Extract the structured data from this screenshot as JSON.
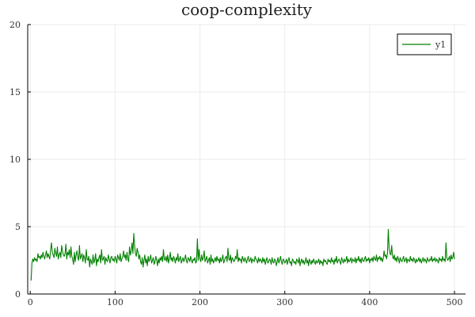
{
  "chart_data": {
    "type": "line",
    "title": "coop-complexity",
    "xlabel": "",
    "ylabel": "",
    "xlim": [
      -3,
      513
    ],
    "ylim": [
      0,
      20
    ],
    "x_ticks": [
      0,
      100,
      200,
      300,
      400,
      500
    ],
    "y_ticks": [
      0,
      5,
      10,
      15,
      20
    ],
    "grid": true,
    "legend": {
      "placement": "top-right",
      "entries": [
        "y1"
      ]
    },
    "series": [
      {
        "name": "y1",
        "color": "#008000",
        "x_start": 1,
        "x_step": 1,
        "values": [
          1.0,
          2.3,
          2.6,
          2.4,
          2.7,
          2.5,
          2.6,
          2.4,
          3.0,
          2.7,
          2.8,
          2.6,
          2.9,
          2.7,
          3.1,
          2.8,
          2.6,
          2.9,
          3.2,
          2.7,
          3.0,
          2.8,
          2.6,
          3.3,
          3.8,
          3.1,
          2.9,
          2.7,
          3.4,
          3.0,
          2.8,
          3.5,
          2.6,
          2.9,
          3.1,
          2.7,
          3.6,
          3.2,
          2.9,
          2.8,
          3.0,
          3.7,
          2.6,
          3.1,
          2.9,
          3.3,
          2.7,
          3.5,
          2.8,
          2.6,
          2.2,
          3.1,
          2.4,
          2.9,
          3.2,
          2.7,
          2.5,
          3.6,
          2.6,
          2.8,
          3.0,
          2.4,
          2.9,
          2.7,
          2.3,
          3.3,
          2.6,
          2.5,
          2.8,
          2.0,
          2.6,
          2.4,
          2.2,
          2.9,
          2.3,
          2.5,
          3.0,
          2.1,
          2.6,
          2.4,
          2.7,
          2.9,
          2.3,
          3.3,
          2.5,
          2.6,
          2.8,
          2.2,
          2.7,
          2.5,
          2.4,
          2.9,
          2.6,
          2.3,
          2.7,
          2.8,
          2.5,
          2.6,
          2.4,
          2.8,
          2.6,
          2.3,
          2.9,
          2.7,
          2.5,
          3.0,
          2.4,
          2.6,
          2.8,
          3.2,
          2.7,
          2.9,
          2.5,
          3.1,
          2.6,
          2.4,
          3.5,
          2.9,
          3.2,
          3.8,
          3.0,
          4.5,
          3.6,
          3.0,
          2.8,
          3.4,
          3.1,
          2.6,
          2.9,
          2.4,
          2.2,
          2.7,
          2.0,
          2.5,
          2.9,
          2.3,
          2.6,
          2.1,
          2.8,
          2.4,
          2.6,
          2.9,
          2.3,
          2.5,
          2.7,
          2.2,
          2.4,
          2.8,
          2.5,
          2.1,
          2.6,
          2.3,
          2.7,
          2.5,
          2.8,
          2.4,
          3.3,
          2.6,
          2.5,
          2.8,
          2.4,
          2.9,
          2.3,
          2.6,
          3.1,
          2.5,
          2.7,
          2.4,
          2.8,
          2.6,
          2.3,
          2.7,
          2.5,
          3.0,
          2.4,
          2.6,
          2.8,
          2.3,
          2.5,
          2.7,
          2.4,
          2.6,
          2.9,
          2.5,
          2.3,
          2.7,
          2.6,
          2.4,
          2.8,
          2.5,
          2.3,
          2.6,
          2.5,
          2.7,
          2.3,
          2.4,
          4.1,
          2.5,
          3.3,
          2.6,
          2.4,
          2.9,
          2.5,
          2.7,
          3.2,
          2.4,
          2.6,
          2.8,
          2.3,
          2.5,
          2.7,
          2.2,
          2.9,
          2.4,
          2.6,
          2.3,
          2.5,
          2.7,
          2.4,
          2.8,
          2.5,
          2.6,
          2.3,
          2.7,
          2.4,
          2.6,
          2.9,
          2.3,
          2.5,
          2.7,
          2.8,
          2.4,
          3.4,
          2.6,
          2.5,
          2.9,
          2.3,
          2.7,
          2.6,
          2.4,
          2.5,
          2.8,
          2.6,
          3.3,
          2.4,
          2.7,
          2.5,
          2.6,
          2.3,
          2.8,
          2.6,
          2.4,
          2.7,
          2.5,
          2.3,
          2.6,
          2.8,
          2.4,
          2.5,
          2.7,
          2.3,
          2.6,
          2.5,
          2.4,
          2.8,
          2.6,
          2.5,
          2.3,
          2.7,
          2.4,
          2.6,
          2.5,
          2.3,
          2.7,
          2.4,
          2.6,
          2.2,
          2.5,
          2.7,
          2.3,
          2.4,
          2.6,
          2.5,
          2.2,
          2.7,
          2.4,
          2.3,
          2.6,
          2.5,
          2.1,
          2.4,
          2.7,
          2.3,
          2.5,
          2.8,
          2.4,
          2.2,
          2.6,
          2.5,
          2.3,
          2.4,
          2.6,
          2.2,
          2.5,
          2.7,
          2.3,
          2.4,
          2.1,
          2.6,
          2.5,
          2.3,
          2.4,
          2.2,
          2.6,
          2.5,
          2.3,
          2.7,
          2.1,
          2.4,
          2.6,
          2.3,
          2.5,
          2.2,
          2.4,
          2.7,
          2.3,
          2.5,
          2.1,
          2.6,
          2.4,
          2.2,
          2.5,
          2.3,
          2.6,
          2.4,
          2.2,
          2.5,
          2.3,
          2.4,
          2.6,
          2.2,
          2.5,
          2.3,
          2.4,
          2.1,
          2.6,
          2.4,
          2.5,
          2.3,
          2.2,
          2.6,
          2.4,
          2.5,
          2.3,
          2.7,
          2.4,
          2.5,
          2.2,
          2.6,
          2.4,
          2.8,
          2.3,
          2.5,
          2.6,
          2.4,
          2.2,
          2.7,
          2.5,
          2.3,
          2.6,
          2.4,
          2.5,
          2.8,
          2.3,
          2.6,
          2.4,
          2.5,
          2.7,
          2.3,
          2.6,
          2.5,
          2.4,
          2.7,
          2.3,
          2.6,
          2.5,
          2.8,
          2.4,
          2.6,
          2.3,
          2.7,
          2.5,
          2.4,
          2.6,
          2.8,
          2.4,
          2.6,
          2.5,
          2.7,
          2.3,
          2.6,
          2.5,
          2.7,
          2.4,
          2.8,
          2.6,
          2.5,
          2.9,
          2.4,
          2.7,
          2.6,
          2.8,
          2.5,
          2.7,
          2.4,
          2.6,
          3.2,
          2.8,
          2.9,
          2.6,
          3.0,
          4.8,
          3.4,
          3.0,
          2.9,
          3.6,
          2.8,
          2.6,
          2.9,
          2.5,
          2.7,
          2.4,
          2.8,
          2.6,
          2.3,
          2.7,
          2.5,
          2.4,
          2.6,
          2.8,
          2.4,
          2.5,
          2.7,
          2.3,
          2.6,
          2.5,
          2.4,
          2.8,
          2.5,
          2.6,
          2.4,
          2.7,
          2.5,
          2.3,
          2.6,
          2.4,
          2.5,
          2.7,
          2.4,
          2.6,
          2.3,
          2.5,
          2.7,
          2.4,
          2.6,
          2.5,
          2.3,
          2.7,
          2.5,
          2.4,
          2.6,
          2.5,
          2.8,
          2.4,
          2.6,
          2.5,
          2.7,
          2.4,
          2.6,
          2.5,
          2.3,
          2.7,
          2.5,
          2.6,
          2.4,
          2.8,
          2.5,
          2.6,
          2.4,
          3.8,
          2.7,
          2.5,
          2.6,
          2.8,
          2.4,
          2.9,
          2.6,
          2.7,
          3.1,
          2.6
        ]
      }
    ]
  }
}
